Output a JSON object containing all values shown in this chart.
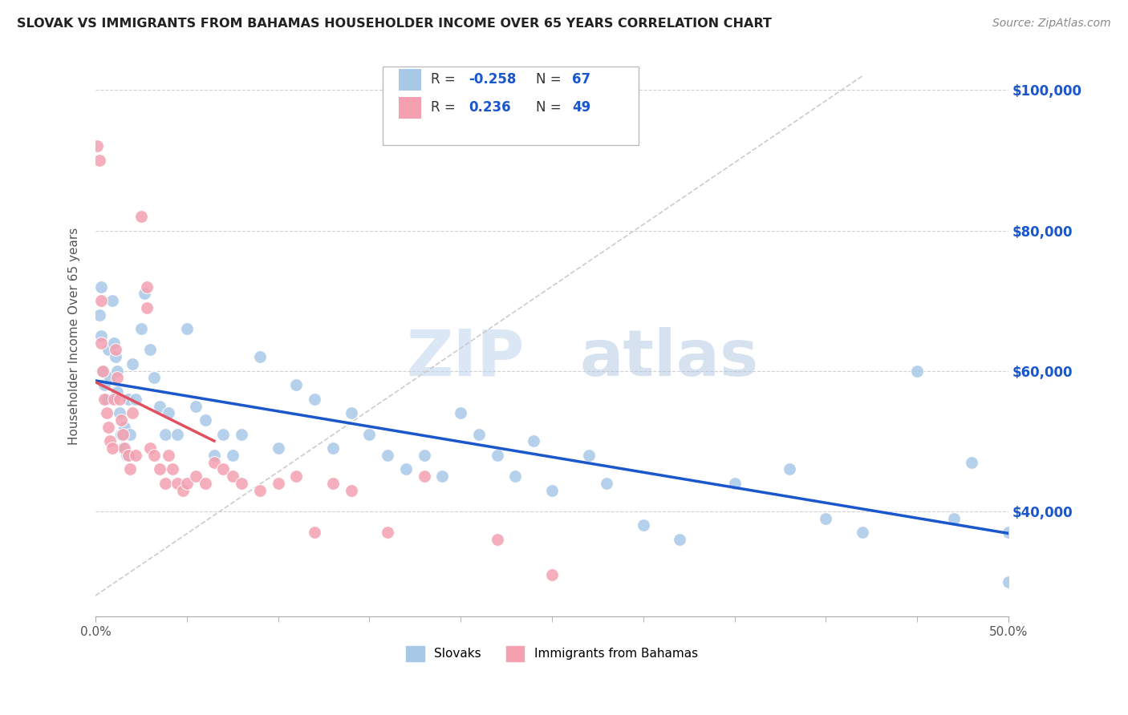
{
  "title": "SLOVAK VS IMMIGRANTS FROM BAHAMAS HOUSEHOLDER INCOME OVER 65 YEARS CORRELATION CHART",
  "source": "Source: ZipAtlas.com",
  "xlabel_ticks": [
    "0.0%",
    "50.0%"
  ],
  "xlabel_tick_vals": [
    0.0,
    0.5
  ],
  "ylabel_ticks": [
    "$40,000",
    "$60,000",
    "$80,000",
    "$100,000"
  ],
  "ylabel_tick_vals": [
    40000,
    60000,
    80000,
    100000
  ],
  "ylabel": "Householder Income Over 65 years",
  "legend_labels": [
    "Slovaks",
    "Immigrants from Bahamas"
  ],
  "slovak_R": "-0.258",
  "slovak_N": "67",
  "bahamas_R": "0.236",
  "bahamas_N": "49",
  "slovak_color": "#a8c8e8",
  "bahamas_color": "#f4a0b0",
  "slovak_line_color": "#1a56cc",
  "bahamas_line_color": "#e05060",
  "diagonal_line_color": "#cccccc",
  "background_color": "#ffffff",
  "watermark_zip": "ZIP",
  "watermark_atlas": "atlas",
  "xlim": [
    0.0,
    0.5
  ],
  "ylim": [
    25000,
    105000
  ],
  "minor_xticks": [
    0.05,
    0.1,
    0.15,
    0.2,
    0.25,
    0.3,
    0.35,
    0.4,
    0.45
  ],
  "slovak_x": [
    0.002,
    0.003,
    0.003,
    0.004,
    0.005,
    0.006,
    0.007,
    0.008,
    0.009,
    0.01,
    0.011,
    0.012,
    0.012,
    0.013,
    0.014,
    0.015,
    0.016,
    0.017,
    0.018,
    0.019,
    0.02,
    0.022,
    0.025,
    0.027,
    0.03,
    0.032,
    0.035,
    0.038,
    0.04,
    0.045,
    0.05,
    0.055,
    0.06,
    0.065,
    0.07,
    0.075,
    0.08,
    0.09,
    0.1,
    0.11,
    0.12,
    0.13,
    0.14,
    0.15,
    0.16,
    0.17,
    0.18,
    0.19,
    0.2,
    0.21,
    0.22,
    0.23,
    0.24,
    0.25,
    0.27,
    0.28,
    0.3,
    0.32,
    0.35,
    0.38,
    0.4,
    0.42,
    0.45,
    0.47,
    0.48,
    0.5,
    0.5
  ],
  "slovak_y": [
    68000,
    72000,
    65000,
    60000,
    58000,
    56000,
    63000,
    59000,
    70000,
    64000,
    62000,
    60000,
    57000,
    54000,
    51000,
    49000,
    52000,
    48000,
    56000,
    51000,
    61000,
    56000,
    66000,
    71000,
    63000,
    59000,
    55000,
    51000,
    54000,
    51000,
    66000,
    55000,
    53000,
    48000,
    51000,
    48000,
    51000,
    62000,
    49000,
    58000,
    56000,
    49000,
    54000,
    51000,
    48000,
    46000,
    48000,
    45000,
    54000,
    51000,
    48000,
    45000,
    50000,
    43000,
    48000,
    44000,
    38000,
    36000,
    44000,
    46000,
    39000,
    37000,
    60000,
    39000,
    47000,
    37000,
    30000
  ],
  "bahamas_x": [
    0.001,
    0.002,
    0.003,
    0.003,
    0.004,
    0.005,
    0.006,
    0.007,
    0.008,
    0.009,
    0.01,
    0.011,
    0.012,
    0.013,
    0.014,
    0.015,
    0.016,
    0.018,
    0.019,
    0.02,
    0.022,
    0.025,
    0.028,
    0.028,
    0.03,
    0.032,
    0.035,
    0.038,
    0.04,
    0.042,
    0.045,
    0.048,
    0.05,
    0.055,
    0.06,
    0.065,
    0.07,
    0.075,
    0.08,
    0.09,
    0.1,
    0.11,
    0.12,
    0.13,
    0.14,
    0.16,
    0.18,
    0.22,
    0.25
  ],
  "bahamas_y": [
    92000,
    90000,
    70000,
    64000,
    60000,
    56000,
    54000,
    52000,
    50000,
    49000,
    56000,
    63000,
    59000,
    56000,
    53000,
    51000,
    49000,
    48000,
    46000,
    54000,
    48000,
    82000,
    72000,
    69000,
    49000,
    48000,
    46000,
    44000,
    48000,
    46000,
    44000,
    43000,
    44000,
    45000,
    44000,
    47000,
    46000,
    45000,
    44000,
    43000,
    44000,
    45000,
    37000,
    44000,
    43000,
    37000,
    45000,
    36000,
    31000
  ]
}
